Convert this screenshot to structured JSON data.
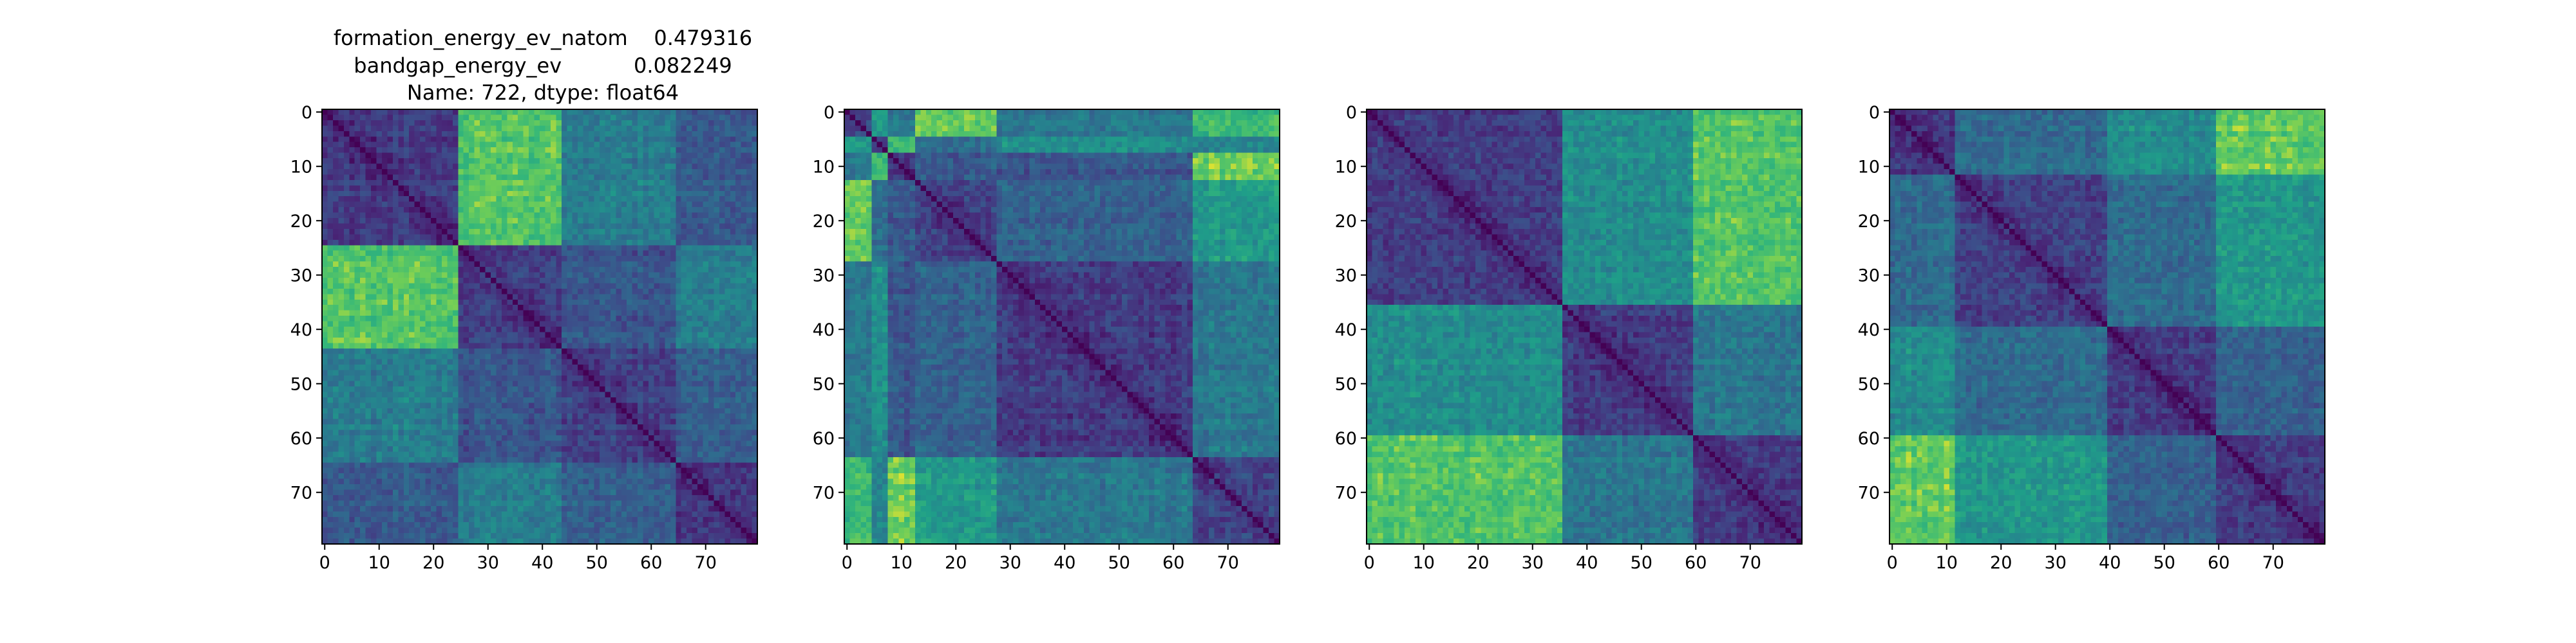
{
  "figure": {
    "title_lines": [
      "formation_energy_ev_natom    0.479316",
      "bandgap_energy_ev           0.082249",
      "Name: 722, dtype: float64"
    ]
  },
  "chart_data": [
    {
      "type": "heatmap",
      "title": "",
      "size": 80,
      "xlim": [
        0,
        79
      ],
      "ylim": [
        79,
        0
      ],
      "xticks": [
        0,
        10,
        20,
        30,
        40,
        50,
        60,
        70
      ],
      "yticks": [
        0,
        10,
        20,
        30,
        40,
        50,
        60,
        70
      ],
      "colormap": "viridis",
      "blocks": [
        [
          0,
          25
        ],
        [
          25,
          44
        ],
        [
          44,
          65
        ],
        [
          65,
          80
        ]
      ],
      "block_values": [
        [
          0.2,
          0.82,
          0.48,
          0.32
        ],
        [
          0.82,
          0.2,
          0.3,
          0.48
        ],
        [
          0.48,
          0.3,
          0.22,
          0.35
        ],
        [
          0.32,
          0.48,
          0.35,
          0.2
        ]
      ]
    },
    {
      "type": "heatmap",
      "title": "",
      "size": 80,
      "xlim": [
        0,
        79
      ],
      "ylim": [
        79,
        0
      ],
      "xticks": [
        0,
        10,
        20,
        30,
        40,
        50,
        60,
        70
      ],
      "yticks": [
        0,
        10,
        20,
        30,
        40,
        50,
        60,
        70
      ],
      "colormap": "viridis",
      "blocks": [
        [
          0,
          5
        ],
        [
          5,
          8
        ],
        [
          8,
          13
        ],
        [
          13,
          28
        ],
        [
          28,
          64
        ],
        [
          64,
          80
        ]
      ],
      "block_values": [
        [
          0.3,
          0.6,
          0.45,
          0.85,
          0.45,
          0.75
        ],
        [
          0.6,
          0.3,
          0.75,
          0.4,
          0.55,
          0.5
        ],
        [
          0.45,
          0.75,
          0.22,
          0.3,
          0.3,
          0.85
        ],
        [
          0.85,
          0.4,
          0.3,
          0.22,
          0.35,
          0.6
        ],
        [
          0.45,
          0.55,
          0.3,
          0.35,
          0.2,
          0.45
        ],
        [
          0.75,
          0.5,
          0.85,
          0.6,
          0.45,
          0.22
        ]
      ]
    },
    {
      "type": "heatmap",
      "title": "",
      "size": 80,
      "xlim": [
        0,
        79
      ],
      "ylim": [
        79,
        0
      ],
      "xticks": [
        0,
        10,
        20,
        30,
        40,
        50,
        60,
        70
      ],
      "yticks": [
        0,
        10,
        20,
        30,
        40,
        50,
        60,
        70
      ],
      "colormap": "viridis",
      "blocks": [
        [
          0,
          36
        ],
        [
          36,
          60
        ],
        [
          60,
          80
        ]
      ],
      "block_values": [
        [
          0.2,
          0.55,
          0.82
        ],
        [
          0.55,
          0.2,
          0.45
        ],
        [
          0.82,
          0.45,
          0.2
        ]
      ]
    },
    {
      "type": "heatmap",
      "title": "",
      "size": 80,
      "xlim": [
        0,
        79
      ],
      "ylim": [
        79,
        0
      ],
      "xticks": [
        0,
        10,
        20,
        30,
        40,
        50,
        60,
        70
      ],
      "yticks": [
        0,
        10,
        20,
        30,
        40,
        50,
        60,
        70
      ],
      "colormap": "viridis",
      "blocks": [
        [
          0,
          12
        ],
        [
          12,
          40
        ],
        [
          40,
          60
        ],
        [
          60,
          80
        ]
      ],
      "block_values": [
        [
          0.2,
          0.4,
          0.55,
          0.85
        ],
        [
          0.4,
          0.22,
          0.4,
          0.6
        ],
        [
          0.55,
          0.4,
          0.2,
          0.35
        ],
        [
          0.85,
          0.6,
          0.35,
          0.2
        ]
      ]
    }
  ]
}
